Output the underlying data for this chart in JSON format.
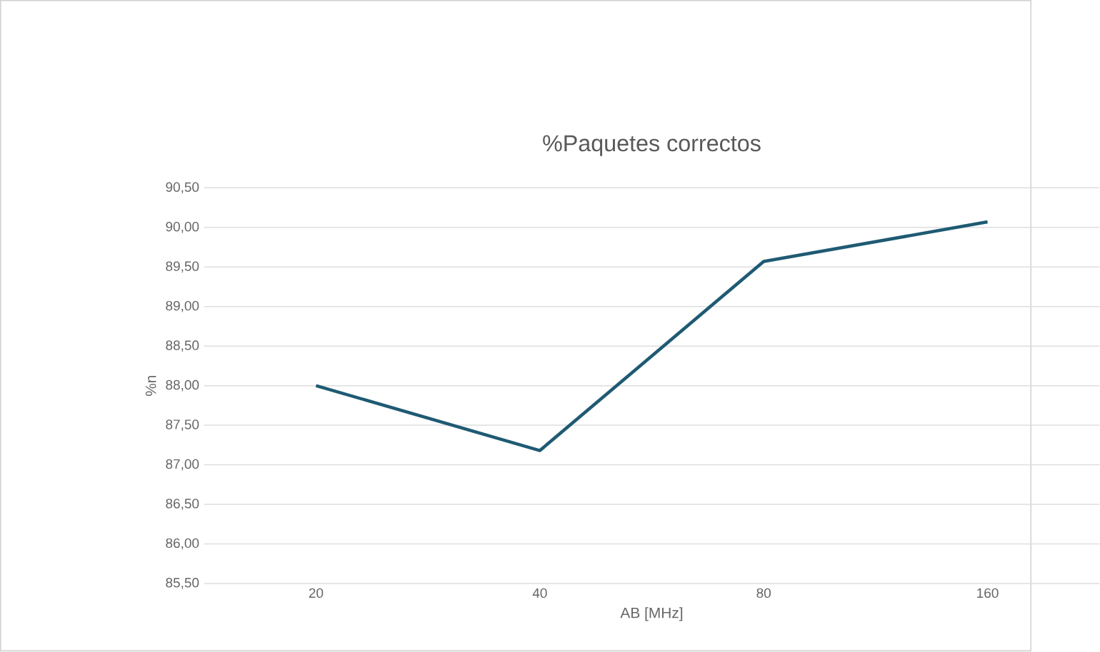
{
  "chart_data": {
    "type": "line",
    "title": "%Paquetes correctos",
    "xlabel": "AB [MHz]",
    "ylabel": "%n",
    "categories": [
      "20",
      "40",
      "80",
      "160"
    ],
    "series": [
      {
        "color": "#1f5a73",
        "values": [
          88.0,
          87.18,
          89.57,
          90.07
        ]
      }
    ],
    "ylim": [
      85.5,
      90.5
    ],
    "yticks": [
      {
        "value": 85.5,
        "label": "85,50"
      },
      {
        "value": 86.0,
        "label": "86,00"
      },
      {
        "value": 86.5,
        "label": "86,50"
      },
      {
        "value": 87.0,
        "label": "87,00"
      },
      {
        "value": 87.5,
        "label": "87,50"
      },
      {
        "value": 88.0,
        "label": "88,00"
      },
      {
        "value": 88.5,
        "label": "88,50"
      },
      {
        "value": 89.0,
        "label": "89,00"
      },
      {
        "value": 89.5,
        "label": "89,50"
      },
      {
        "value": 90.0,
        "label": "90,00"
      },
      {
        "value": 90.5,
        "label": "90,50"
      }
    ],
    "grid": "y",
    "legend": false,
    "marker": "none",
    "line_style": "solid"
  }
}
